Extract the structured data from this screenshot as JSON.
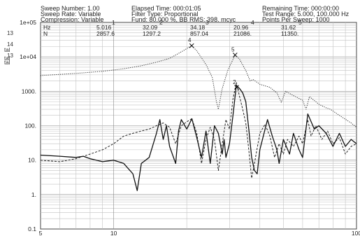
{
  "header": {
    "sweep_number": "Sweep Number: 1.00",
    "sweep_rate": "Sweep Rate: Variable",
    "compression": "Compression: Variable",
    "elapsed_time": "Elapsed Time: 000:01:05",
    "filter_type": "Filter Type: Proportional",
    "fund": "Fund: 80.000 %, BB RMS: 398. mcyc",
    "remaining_time": "Remaining Time: 000:00:00",
    "test_range": "Test Range: 5.000, 100.000 Hz",
    "points_per_sweep": "Points Per Sweep: 1000"
  },
  "side_labels": [
    "13",
    "14",
    "tal",
    "tal",
    "13",
    "tal"
  ],
  "peak_table": {
    "row_labels": [
      "Hz",
      "N"
    ],
    "columns": [
      {
        "index": "1",
        "hz": "5.016",
        "n": "2857.6"
      },
      {
        "index": "2",
        "hz": "32.09",
        "n": "1297.2"
      },
      {
        "index": "3",
        "hz": "34.18",
        "n": "857.04"
      },
      {
        "index": "4",
        "hz": "20.96",
        "n": "21086."
      },
      {
        "index": "5",
        "hz": "31.62",
        "n": "11350."
      }
    ]
  },
  "chart_data": {
    "type": "line",
    "x_scale": "log",
    "y_scale": "log",
    "xlim": [
      5,
      100
    ],
    "ylim": [
      0.1,
      100000
    ],
    "x_ticks": [
      {
        "v": 5,
        "label": "5"
      },
      {
        "v": 10,
        "label": "10"
      },
      {
        "v": 100,
        "label": "100"
      }
    ],
    "y_ticks": [
      {
        "v": 0.1,
        "label": "0.1"
      },
      {
        "v": 1,
        "label": "1."
      },
      {
        "v": 10,
        "label": "10."
      },
      {
        "v": 100,
        "label": "100."
      },
      {
        "v": 1000,
        "label": "1000."
      },
      {
        "v": 10000,
        "label": "1e+04"
      },
      {
        "v": 100000,
        "label": "1e+05"
      }
    ],
    "grid": true,
    "markers": [
      {
        "label": "4",
        "x": 20.96,
        "y": 21086
      },
      {
        "label": "5",
        "x": 31.62,
        "y": 11350
      },
      {
        "label": "2",
        "x": 32.09,
        "y": 1297.2
      }
    ],
    "series": [
      {
        "style": "dotted",
        "color": "#333333",
        "points": [
          [
            5,
            2857.6
          ],
          [
            7,
            3300
          ],
          [
            9,
            3800
          ],
          [
            11,
            4500
          ],
          [
            13,
            5500
          ],
          [
            15,
            7000
          ],
          [
            17,
            9000
          ],
          [
            19,
            14000
          ],
          [
            20.96,
            21086
          ],
          [
            22,
            15000
          ],
          [
            24,
            6000
          ],
          [
            25.5,
            2500
          ],
          [
            26.5,
            500
          ],
          [
            27,
            300
          ],
          [
            28,
            1200
          ],
          [
            29.5,
            4000
          ],
          [
            31.62,
            11350
          ],
          [
            33,
            8500
          ],
          [
            35,
            4000
          ],
          [
            36.5,
            2000
          ],
          [
            37.5,
            2200
          ],
          [
            40,
            1600
          ],
          [
            44,
            1300
          ],
          [
            47,
            900
          ],
          [
            49,
            480
          ],
          [
            51,
            1000
          ],
          [
            55,
            750
          ],
          [
            60,
            550
          ],
          [
            62,
            300
          ],
          [
            64,
            700
          ],
          [
            70,
            420
          ],
          [
            75,
            330
          ],
          [
            78,
            300
          ],
          [
            85,
            200
          ],
          [
            95,
            120
          ],
          [
            100,
            90
          ]
        ]
      },
      {
        "style": "solid",
        "color": "#111111",
        "points": [
          [
            5,
            14
          ],
          [
            6,
            13
          ],
          [
            7,
            12
          ],
          [
            7.5,
            13
          ],
          [
            8,
            11
          ],
          [
            9,
            9
          ],
          [
            10,
            10
          ],
          [
            11,
            8
          ],
          [
            12,
            4
          ],
          [
            12.5,
            1.3
          ],
          [
            13,
            8
          ],
          [
            14,
            12
          ],
          [
            15,
            60
          ],
          [
            15.5,
            150
          ],
          [
            16,
            40
          ],
          [
            16.5,
            100
          ],
          [
            17,
            25
          ],
          [
            18,
            8
          ],
          [
            18.5,
            70
          ],
          [
            19,
            150
          ],
          [
            20,
            80
          ],
          [
            21,
            160
          ],
          [
            22,
            45
          ],
          [
            23,
            12
          ],
          [
            24,
            70
          ],
          [
            25,
            8
          ],
          [
            26,
            100
          ],
          [
            27,
            60
          ],
          [
            28,
            15
          ],
          [
            28.5,
            40
          ],
          [
            29,
            12
          ],
          [
            30,
            30
          ],
          [
            31,
            200
          ],
          [
            32,
            1500
          ],
          [
            33,
            1200
          ],
          [
            34,
            900
          ],
          [
            35,
            500
          ],
          [
            36,
            80
          ],
          [
            37,
            12
          ],
          [
            38,
            5
          ],
          [
            39,
            4
          ],
          [
            40,
            20
          ],
          [
            43,
            150
          ],
          [
            45,
            50
          ],
          [
            47,
            20
          ],
          [
            48,
            8
          ],
          [
            50,
            40
          ],
          [
            53,
            15
          ],
          [
            55,
            60
          ],
          [
            58,
            20
          ],
          [
            60,
            12
          ],
          [
            63,
            220
          ],
          [
            67,
            80
          ],
          [
            70,
            100
          ],
          [
            75,
            60
          ],
          [
            80,
            25
          ],
          [
            85,
            60
          ],
          [
            90,
            25
          ],
          [
            95,
            40
          ],
          [
            100,
            30
          ]
        ]
      },
      {
        "style": "dashed",
        "color": "#222222",
        "points": [
          [
            5,
            10
          ],
          [
            6,
            9
          ],
          [
            7,
            11
          ],
          [
            8,
            15
          ],
          [
            9,
            20
          ],
          [
            10,
            30
          ],
          [
            11,
            50
          ],
          [
            12,
            60
          ],
          [
            13,
            70
          ],
          [
            14,
            80
          ],
          [
            15,
            100
          ],
          [
            16,
            120
          ],
          [
            17,
            90
          ],
          [
            18,
            30
          ],
          [
            19,
            100
          ],
          [
            20,
            130
          ],
          [
            21,
            160
          ],
          [
            22,
            60
          ],
          [
            23,
            8
          ],
          [
            24,
            40
          ],
          [
            25,
            90
          ],
          [
            26,
            40
          ],
          [
            27,
            5
          ],
          [
            28,
            30
          ],
          [
            29,
            150
          ],
          [
            30,
            80
          ],
          [
            31,
            600
          ],
          [
            32,
            1800
          ],
          [
            33,
            700
          ],
          [
            34,
            300
          ],
          [
            35,
            120
          ],
          [
            36,
            20
          ],
          [
            37,
            3
          ],
          [
            38,
            8
          ],
          [
            40,
            60
          ],
          [
            42,
            110
          ],
          [
            44,
            50
          ],
          [
            46,
            12
          ],
          [
            48,
            30
          ],
          [
            50,
            15
          ],
          [
            52,
            40
          ],
          [
            55,
            25
          ],
          [
            58,
            50
          ],
          [
            60,
            30
          ],
          [
            63,
            150
          ],
          [
            65,
            50
          ],
          [
            68,
            100
          ],
          [
            72,
            40
          ],
          [
            76,
            70
          ],
          [
            80,
            30
          ],
          [
            85,
            45
          ],
          [
            90,
            15
          ],
          [
            95,
            25
          ],
          [
            100,
            30
          ]
        ]
      }
    ]
  }
}
